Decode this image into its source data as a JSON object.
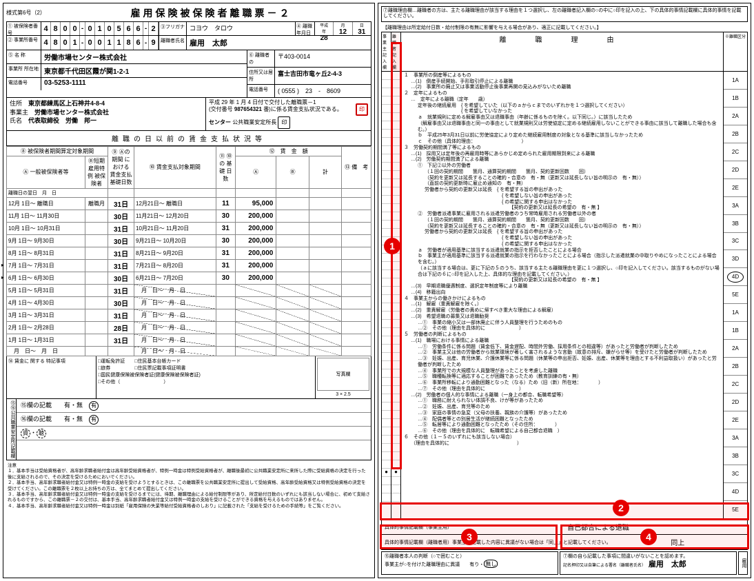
{
  "form_number": "様式第6号（2）",
  "title": "雇用保険被保険者離職票－２",
  "id_rows": {
    "insured_no_label": "①\n被保険者番号",
    "insured_no": [
      "4",
      "8",
      "0",
      "0",
      "-",
      "0",
      "1",
      "0",
      "5",
      "6",
      "6",
      "-",
      "2"
    ],
    "office_no_label": "②\n事業所番号",
    "office_no": [
      "4",
      "8",
      "0",
      "1",
      "-",
      "0",
      "0",
      "1",
      "1",
      "8",
      "6",
      "-",
      "9"
    ],
    "furigana_label": "③フリガナ",
    "furigana": "コヨウ　タロウ",
    "name_label": "離職者氏名",
    "name": "雇用　太郎",
    "sep_date_label": "④ 離職\n年月日",
    "sep_date_era": "平成",
    "sep_y": "28",
    "sep_m": "12",
    "sep_d": "31"
  },
  "company": {
    "name_label": "⑤ 名 称",
    "name": "労働市場センター株式会社",
    "addr_label": "事業所 所在地",
    "addr": "東京都千代田区霞が関1-2-1",
    "tel_label": "電話番号",
    "tel": "03-5253-1111",
    "sep_person_label": "⑥\n離職者の",
    "zip": "〒403-0014",
    "sep_addr_label": "住所又は居所",
    "sep_addr": "富士吉田市竜ヶ丘2-4-3",
    "sep_tel_label": "電話番号",
    "sep_tel": "( 0555 )　23　-　8609"
  },
  "employer": {
    "addr_label": "住所",
    "addr": "東京都練馬区上石神井4-8-4",
    "owner_label": "事業主",
    "owner": "労働市場センター株式会社",
    "rep_label": "氏名",
    "rep": "代表取締役　労働　邦一",
    "issue_label": "平成 29 年 1 月 4 日付で交付した離職票－1",
    "receipt_label": "(交付番号",
    "receipt_no": "987654321",
    "receipt_suffix": "番)に係る賃金支払状況である。",
    "seal1": "印",
    "office_name": "センター",
    "office_suffix": "公共職業安定所長",
    "seal2": "印"
  },
  "wage_title": "離職の日以前の賃金支払状況等",
  "wage_headers": {
    "c1": "⑧ 被保険者期間算定対象期間",
    "c1a": "Ⓐ 一般被保険者等",
    "c1b": "Ⓑ短期\n雇用特例\n被保険者",
    "c2": "⑨\nⒶの期間\nにおける\n賃金支払\n基礎日数",
    "c3": "⑩ 賃金支払対象期間",
    "c4": "⑪\n⑩の\n基礎\n日数",
    "c5": "⑫　賃　金　額",
    "c5a": "Ⓐ",
    "c5b": "Ⓑ",
    "c5c": "計",
    "c6": "⑬\n備　考",
    "sep_day_label": "離職日の翌日"
  },
  "wage_rows": [
    {
      "p1": "12月 1日～ 離職日",
      "bdays": "離職月",
      "d1": "31日",
      "p2": "12月21日～ 離職日",
      "d2": "11",
      "a": "95,000",
      "arrow": false
    },
    {
      "p1": "11月 1日～ 11月30日",
      "bdays": "",
      "d1": "30日",
      "p2": "11月21日～ 12月20日",
      "d2": "30",
      "a": "200,000",
      "arrow": false
    },
    {
      "p1": "10月 1日～ 10月31日",
      "bdays": "",
      "d1": "31日",
      "p2": "10月21日～ 11月20日",
      "d2": "31",
      "a": "200,000",
      "arrow": false
    },
    {
      "p1": "9月 1日～ 9月30日",
      "bdays": "",
      "d1": "30日",
      "p2": "9月21日～ 10月20日",
      "d2": "30",
      "a": "200,000",
      "arrow": false
    },
    {
      "p1": "8月 1日～ 8月31日",
      "bdays": "",
      "d1": "31日",
      "p2": "8月21日～ 9月20日",
      "d2": "31",
      "a": "200,000",
      "arrow": false
    },
    {
      "p1": "7月 1日～ 7月31日",
      "bdays": "",
      "d1": "31日",
      "p2": "7月21日～ 8月20日",
      "d2": "31",
      "a": "200,000",
      "arrow": true
    },
    {
      "p1": "6月 1日～ 6月30日",
      "bdays": "",
      "d1": "30日",
      "p2": "6月21日～ 7月20日",
      "d2": "30",
      "a": "200,000",
      "arrow": true
    },
    {
      "p1": "5月 1日～ 5月31日",
      "bdays": "",
      "d1": "31日",
      "p2": "　月　日～　月　日",
      "d2": "",
      "a": "",
      "arrow": false
    },
    {
      "p1": "4月 1日～ 4月30日",
      "bdays": "",
      "d1": "30日",
      "p2": "　月　日～　月　日",
      "d2": "",
      "a": "",
      "arrow": false
    },
    {
      "p1": "3月 1日～ 3月31日",
      "bdays": "",
      "d1": "31日",
      "p2": "　月　日～　月　日",
      "d2": "",
      "a": "",
      "arrow": false
    },
    {
      "p1": "2月 1日～ 2月28日",
      "bdays": "",
      "d1": "28日",
      "p2": "　月　日～　月　日",
      "d2": "",
      "a": "",
      "arrow": false
    },
    {
      "p1": "1月 1日～ 1月31日",
      "bdays": "",
      "d1": "31日",
      "p2": "　月　日～　月　日",
      "d2": "",
      "a": "",
      "arrow": false
    },
    {
      "p1": "　月　日～　月　日",
      "bdays": "",
      "d1": "",
      "p2": "　月　日～　月　日",
      "d2": "",
      "a": "",
      "arrow": false
    }
  ],
  "notes": {
    "left_label": "⑭\n賃金に\n関する\n特記事項",
    "mid_items": [
      "□運転免許証　　□住民基本台帳カード",
      "□旅券　　　　　□住民票記載事項証明書",
      "□国民健康保険被保険者証(健康保険被保険者証)",
      "□その他（　　　　　　　　　）"
    ],
    "photo_label": "写真欄",
    "photo_size": "3 × 2.5"
  },
  "checks": {
    "vlabel": "⑮⑯公共職業安定所記載欄",
    "r1": "⑮欄の記載　　有・無",
    "r2": "⑯欄の記載　　有・無",
    "r3": "資・聴"
  },
  "footnotes": [
    "注意",
    "１．基本手当は受給資格者が、高年齢求職者給付金は高年齢受給資格者が、特例一時金は特例受給資格者が、離職後最初に公共職業安定所に来所した際に受給資格の決定を行った後に支給されるので、その決定を受けるためにおいでください。",
    "２．基本手当、高年齢求職者給付金又は特例一時金の支給を受けようとするときは、この離職票を公共職業安定所に提出して受給資格、高年齢受給資格又は特例受給資格の決定を受けてください。この離職票を２枚以上お持ちの方は、全てまとめて提出してください。",
    "３．基本手当、高年齢求職者給付金又は特例一時金の支給を受けるまでには、待期、離職理由による給付制限等があり、所定給付日数のいずれにも該当しない場合に、初めて支給されるものですから、この離職票－２の交付は、基本手当、高年齢求職者給付金又は特例一時金の支給を受けることができる資格を与えるものではありません。",
    "４．基本手当、高年齢求職者給付金又は特例一時金は別紙「雇用保険の失業等給付受給資格者のしおり」に記載された「支給を受けるための手続等」をご覧ください。"
  ],
  "right": {
    "header": "⑦離職理由欄…離職者の方は、主たる離職理由が該当する理由を１つ選択し、左の離職者記入欄の○の中に○印を記入の上、下の具体的事情記載欄に具体的事情を記載してください。",
    "subhead": "【離職理由は所定給付日数・給付制限の有無に影響を与える場合があり、適正に記載してください。】",
    "col1_label": "事業主\n記入欄",
    "col2_label": "離職者\n記入欄",
    "colm_label": "離　職　理　由",
    "colr_label": "※離職区分",
    "codes": [
      "1A",
      "1B",
      "2A",
      "2B",
      "2C",
      "2D",
      "2E",
      "3A",
      "3B",
      "3C",
      "3D",
      "4D",
      "5E",
      "1A",
      "1B",
      "2A",
      "2B",
      "2C",
      "2D",
      "2E",
      "3A",
      "3B",
      "3C",
      "4D",
      "5E"
    ],
    "circled_code_index": 11,
    "reasons": [
      {
        "lvl": 1,
        "t": "１　事業所の倒産等によるもの"
      },
      {
        "lvl": 2,
        "t": "…(1)　倒産手続開始、手形取引停止による離職"
      },
      {
        "lvl": 2,
        "t": "…(2)　事業所の廃止又は事業活動停止後事業再開の見込みがないため離職"
      },
      {
        "lvl": 1,
        "t": "２　定年によるもの"
      },
      {
        "lvl": 2,
        "t": "…　定年による離職（定年　　歳）"
      },
      {
        "lvl": 3,
        "t": "定年後の継続雇用　{ を希望していた（以下のａからｃまでのいずれかを１つ選択してください）"
      },
      {
        "lvl": 3,
        "t": "　　　　　　　　　{ を希望していなかった"
      },
      {
        "lvl": 3,
        "t": "ａ　就業規則に定める解雇事由又は退職事由（年齢に係るものを除く。以下同じ。）に該当したため"
      },
      {
        "lvl": 3,
        "t": "（解雇事由又は退職事由と同一の事由として就業規則又は労使協定に定める継続雇用しないことができる事由に該当して離職した場合も含む。）"
      },
      {
        "lvl": 3,
        "t": "ｂ　平成25年3月31日以前に労使協定により定めた継続雇用制度の対象となる基準に該当しなかったため"
      },
      {
        "lvl": 3,
        "t": "ｃ　その他（具体的理由：　　　　　　　　　　）"
      },
      {
        "lv1": 1,
        "t": "３　労働契約期間満了等によるもの"
      },
      {
        "lvl": 2,
        "t": "…(1)　採用又は定年後の再雇用時等にあらかじめ定められた雇用期限到来による離職"
      },
      {
        "lvl": 2,
        "t": "…(2)　労働契約期間満了による離職"
      },
      {
        "lvl": 3,
        "t": "①　下記②以外の労働者"
      },
      {
        "lvl": 4,
        "t": "（１回の契約期間　　箇月、通算契約期間　　箇月、契約更新回数　　回）"
      },
      {
        "lvl": 4,
        "t": "（契約を更新又は延長することの確約・合意の　有・無（更新又は延長しない旨の明示の　有・無））"
      },
      {
        "lvl": 4,
        "t": "（直前の契約更新時に雇止め通知の　有・無）"
      },
      {
        "lvl": 4,
        "t": "労働者から契約の更新又は延長　{ を希望する旨の申出があった"
      },
      {
        "lvl": 4,
        "t": "　　　　　　　　　　　　　　　　{ を希望しない旨の申出があった"
      },
      {
        "lvl": 4,
        "t": "　　　　　　　　　　　　　　　　{ の希望に関する申出はなかった"
      },
      {
        "lvl": 4,
        "t": "　　　　　　　　　　　　　　　　　　【契約の更新又は延長の希望の　有・無 】"
      },
      {
        "lvl": 3,
        "t": "②　労働者派遣事業に雇用される派遣労働者のうち常時雇用される労働者以外の者"
      },
      {
        "lvl": 4,
        "t": "（１回の契約期間　　箇月、通算契約期間　　箇月、契約更新回数　　回）"
      },
      {
        "lvl": 4,
        "t": "（契約を更新又は延長することの確約・合意の　有・無（更新又は延長しない旨の明示の　有・無））"
      },
      {
        "lvl": 4,
        "t": "労働者から契約の更新又は延長　{ を希望する旨の申出があった"
      },
      {
        "lvl": 4,
        "t": "　　　　　　　　　　　　　　　　{ を希望しない旨の申出があった"
      },
      {
        "lvl": 4,
        "t": "　　　　　　　　　　　　　　　　{ の希望に関する申出はなかった"
      },
      {
        "lvl": 3,
        "t": "ａ　労働者が適用基準に該当する派遣就業の指示を拒否したことによる場合"
      },
      {
        "lvl": 3,
        "t": "ｂ　事業主が適用基準に該当する派遣就業の指示を行わなかったことによる場合（指示した派遣就業の中取りやめになったことによる場合を含む。）"
      },
      {
        "lvl": 3,
        "t": "（ａに該当する場合は、更に下記の５のうち、該当する主たる離職理由を更に１つ選択し、○印を記入してください。該当するものがない場合は下記の６に○印を記入した上、具体的な理由を記載してください。）"
      },
      {
        "lvl": 4,
        "t": "　　　　　　　　　　　　　　　　　　【契約の更新又は延長の希望の　有・無 】"
      },
      {
        "lvl": 2,
        "t": "…(3)　早期退職優遇制度、選択定年制度等により離職"
      },
      {
        "lvl": 2,
        "t": "…(4)　移籍出向"
      },
      {
        "lvl": 1,
        "t": "４　事業主からの働きかけによるもの"
      },
      {
        "lvl": 2,
        "t": "…(1)　解雇（重責解雇を除く。）"
      },
      {
        "lvl": 2,
        "t": "…(2)　重責解雇（労働者の責めに帰すべき重大な理由による解雇）"
      },
      {
        "lvl": 2,
        "t": "…(3)　希望退職の募集又は退職勧奨"
      },
      {
        "lvl": 3,
        "t": "…①　事業の縮小又は一部休廃止に伴う人員整理を行うためのもの"
      },
      {
        "lvl": 3,
        "t": "…②　その他（理由を具体的に　　　　　　　）"
      },
      {
        "lvl": 1,
        "t": "５　労働者の判断によるもの"
      },
      {
        "lvl": 2,
        "t": "…(1)　職場における事情による離職"
      },
      {
        "lvl": 3,
        "t": "…①　労働条件に係る問題（賃金低下、賃金遅配、時間外労働、採用条件との相違等）があったと労働者が判断したため"
      },
      {
        "lvl": 3,
        "t": "…②　事業主又は他の労働者から就業環境が著しく害されるような言動（故意の排斥、嫌がらせ等）を受けたと労働者が判断したため"
      },
      {
        "lvl": 3,
        "t": "…③　妊娠、出産、育児休業、介護休業等に係る問題（休業等の申出拒否、妊娠、出産、休業等を理由とする不利益取扱い）があったと労働者が判断したため"
      },
      {
        "lvl": 3,
        "t": "…④　事業所での大規模な人員整理があったことを考慮した離職"
      },
      {
        "lvl": 3,
        "t": "…⑤　職種転換等に適応することが困難であったため（教育訓練の有・無）"
      },
      {
        "lvl": 3,
        "t": "…⑥　事業所移転により通勤困難となった（なる）ため（旧（新）所在地：　　　　）"
      },
      {
        "lvl": 3,
        "t": "…⑦　その他（理由を具体的に　　　　　　　）"
      },
      {
        "lvl": 2,
        "t": "…(2)　労働者の個人的な事情による離職（一身上の都合、転職希望等）"
      },
      {
        "lvl": 3,
        "t": "…①　職務に耐えられない体調不良、けが等があったため"
      },
      {
        "lvl": 3,
        "t": "…②　妊娠、出産、育児等のため"
      },
      {
        "lvl": 3,
        "t": "…③　家庭の事情の急変（父母の扶養、親族の介護等）があったため"
      },
      {
        "lvl": 3,
        "t": "…④　配偶者等との別居生活が継続困難となったため"
      },
      {
        "lvl": 3,
        "t": "…⑤　転居等により通勤困難となったため（その住所：　　　　）"
      },
      {
        "lvl": 3,
        "t": "…⑥　その他（理由を具体的に　転職希望による自己都合退職　）"
      },
      {
        "lvl": 1,
        "t": "６　その他（１－５のいずれにも該当しない場合）"
      },
      {
        "lvl": 2,
        "t": "（理由を具体的に　　　　　　　　　　　　　　）"
      }
    ],
    "concrete1_label": "具体的事情記載欄（事業主用）",
    "concrete1_val": "自己都合による退職",
    "concrete2_label": "具体的事情記載欄（離職者用）事業主が記載した内容に異議がない場合は「同上」と記載してください。",
    "concrete2_val": "同上",
    "bottom1_label": "⑮離職者本人の判断（○で囲むこと）",
    "bottom1_line2": "事業主が○を付けた離職理由に異議",
    "bottom1_opts": "有り・無し",
    "bottom2_label": "⑦欄の自ら記載した事項に間違いがないことを認めます。",
    "bottom2_line2": "記名押印又は自筆による署名（離職者氏名）",
    "bottom2_name": "雇用　太郎",
    "side_tab": "雇用"
  },
  "badges": {
    "1": "1",
    "2": "2",
    "3": "3",
    "4": "4"
  }
}
